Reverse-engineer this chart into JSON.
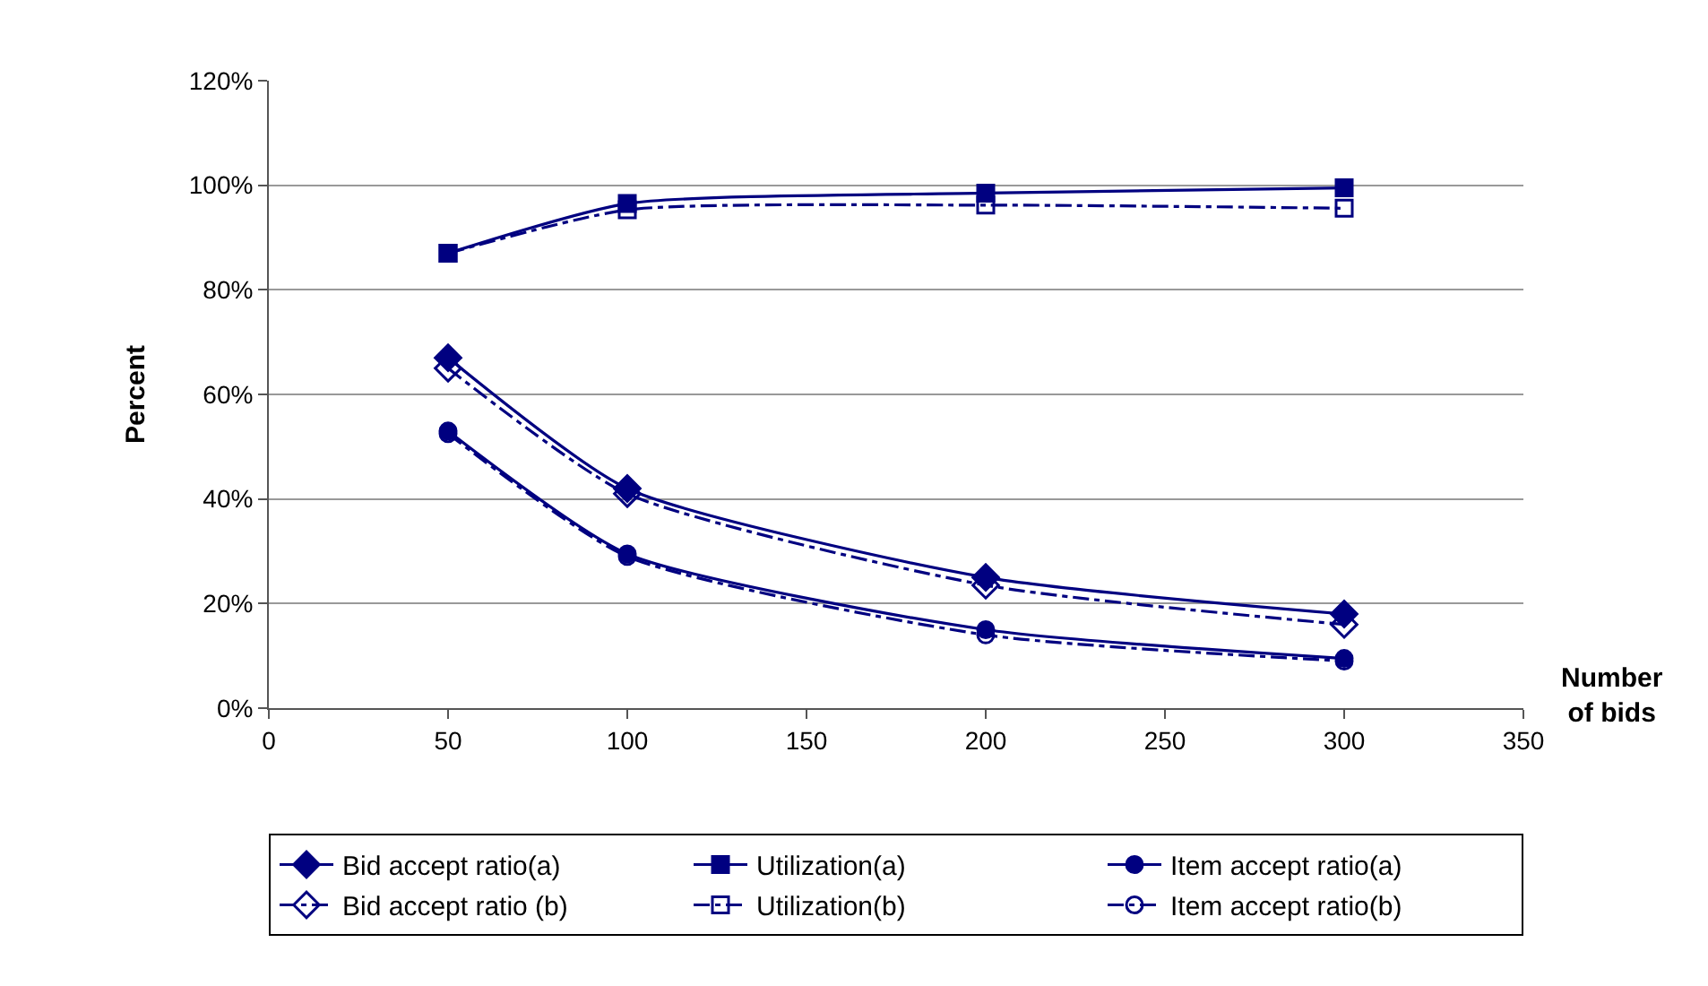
{
  "chart_data": {
    "type": "line",
    "xlabel": "Number of bids",
    "ylabel": "Percent",
    "x": [
      50,
      100,
      200,
      300
    ],
    "series": [
      {
        "name": "Bid accept ratio(a)",
        "color": "#000080",
        "marker": "diamond",
        "line_style": "solid",
        "values": [
          67,
          42,
          25,
          18
        ]
      },
      {
        "name": "Utilization(a)",
        "color": "#000080",
        "marker": "square",
        "line_style": "solid",
        "values": [
          87,
          96.5,
          98.5,
          99.5
        ]
      },
      {
        "name": "Item accept ratio(a)",
        "color": "#000080",
        "marker": "circle",
        "line_style": "solid",
        "values": [
          53,
          29.5,
          15,
          9.5
        ]
      },
      {
        "name": "Bid accept ratio (b)",
        "color": "#000080",
        "marker": "diamond",
        "line_style": "dashed",
        "values": [
          65,
          41,
          23.5,
          16
        ]
      },
      {
        "name": "Utilization(b)",
        "color": "#000080",
        "marker": "square",
        "line_style": "dashed",
        "values": [
          87,
          95.3,
          96.2,
          95.6
        ]
      },
      {
        "name": "Item accept ratio(b)",
        "color": "#000080",
        "marker": "circle",
        "line_style": "dashed",
        "values": [
          52.5,
          29,
          14,
          9
        ]
      }
    ],
    "xlim": [
      0,
      350
    ],
    "xticks": [
      0,
      50,
      100,
      150,
      200,
      250,
      300,
      350
    ],
    "ylim": [
      0,
      120
    ],
    "yticks": [
      {
        "value": 0,
        "label": "0%"
      },
      {
        "value": 20,
        "label": "20%"
      },
      {
        "value": 40,
        "label": "40%"
      },
      {
        "value": 60,
        "label": "60%"
      },
      {
        "value": 80,
        "label": "80%"
      },
      {
        "value": 100,
        "label": "100%"
      },
      {
        "value": 120,
        "label": "120%"
      }
    ],
    "grid": "y",
    "legend": "bottom"
  }
}
